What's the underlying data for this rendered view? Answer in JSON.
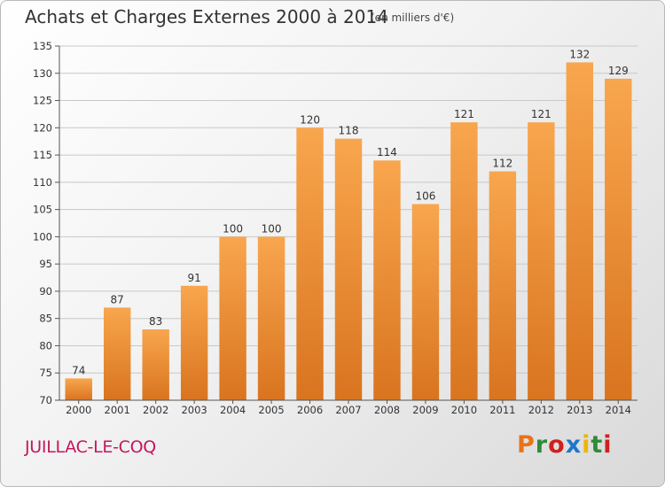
{
  "header": {
    "title": "Achats et Charges Externes 2000 à 2014",
    "subtitle": "(en milliers d'€)"
  },
  "footer": {
    "location": "JUILLAC-LE-COQ",
    "brand": "Proxiti",
    "brand_colors": [
      "#e8731a",
      "#2e8b3a",
      "#d02020",
      "#1e78c8",
      "#f0b400",
      "#2e8b3a",
      "#d02020"
    ]
  },
  "colors": {
    "bar_top": "#f8a64e",
    "bar_bottom": "#d9741f",
    "gridline": "#c8c8c8",
    "text": "#333333"
  },
  "chart_data": {
    "type": "bar",
    "title": "Achats et Charges Externes 2000 à 2014",
    "subtitle": "(en milliers d'€)",
    "categories": [
      "2000",
      "2001",
      "2002",
      "2003",
      "2004",
      "2005",
      "2006",
      "2007",
      "2008",
      "2009",
      "2010",
      "2011",
      "2012",
      "2013",
      "2014"
    ],
    "values": [
      74,
      87,
      83,
      91,
      100,
      100,
      120,
      118,
      114,
      106,
      121,
      112,
      121,
      132,
      129
    ],
    "ylim": [
      70,
      135
    ],
    "yticks": [
      70,
      75,
      80,
      85,
      90,
      95,
      100,
      105,
      110,
      115,
      120,
      125,
      130,
      135
    ],
    "grid": true,
    "legend": "none",
    "data_labels": true
  }
}
